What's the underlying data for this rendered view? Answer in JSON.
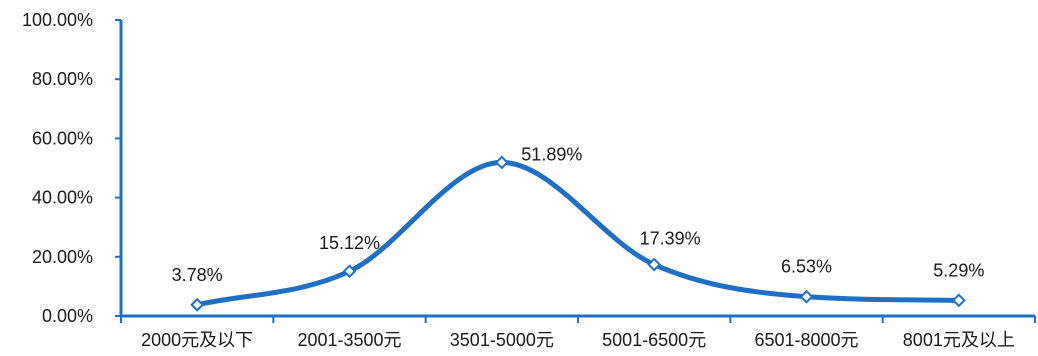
{
  "chart_data": {
    "type": "line",
    "title": "",
    "xlabel": "",
    "ylabel": "",
    "categories": [
      "2000元及以下",
      "2001-3500元",
      "3501-5000元",
      "5001-6500元",
      "6501-8000元",
      "8001元及以上"
    ],
    "series": [
      {
        "values": [
          3.78,
          15.12,
          51.89,
          17.39,
          6.53,
          5.29
        ],
        "data_labels": [
          "3.78%",
          "15.12%",
          "51.89%",
          "17.39%",
          "6.53%",
          "5.29%"
        ]
      }
    ],
    "ylim": [
      0,
      100
    ],
    "yticks": [
      0,
      20,
      40,
      60,
      80,
      100
    ],
    "ytick_labels": [
      "0.00%",
      "20.00%",
      "40.00%",
      "60.00%",
      "80.00%",
      "100.00%"
    ],
    "smooth": true,
    "markers": "diamond",
    "grid": false,
    "legend": "none",
    "colors": {
      "line": "#1f6fc5",
      "axis": "#1f6fc5",
      "marker_fill": "#ffffff"
    }
  }
}
